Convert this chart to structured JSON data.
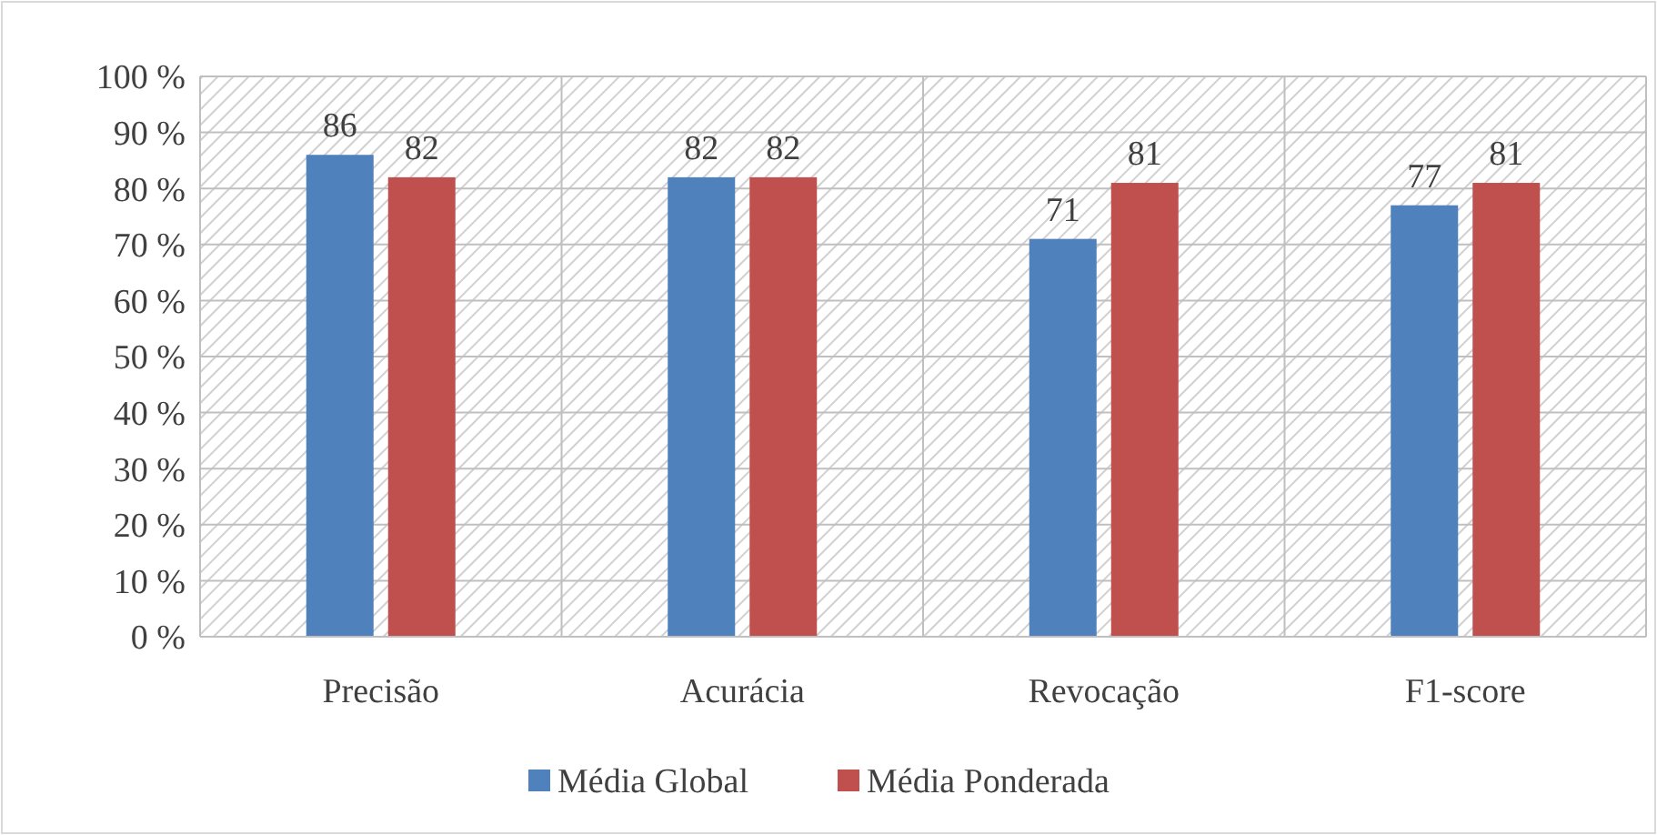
{
  "chart_data": {
    "type": "bar",
    "categories": [
      "Precisão",
      "Acurácia",
      "Revocação",
      "F1-score"
    ],
    "series": [
      {
        "name": "Média Global",
        "color": "#4f81bd",
        "values": [
          86,
          82,
          71,
          77
        ]
      },
      {
        "name": "Média Ponderada",
        "color": "#c0504d",
        "values": [
          82,
          82,
          81,
          81
        ]
      }
    ],
    "ylim": [
      0,
      100
    ],
    "yticks": [
      {
        "value": 0,
        "label": "0 %"
      },
      {
        "value": 10,
        "label": "10 %"
      },
      {
        "value": 20,
        "label": "20 %"
      },
      {
        "value": 30,
        "label": "30 %"
      },
      {
        "value": 40,
        "label": "40 %"
      },
      {
        "value": 50,
        "label": "50 %"
      },
      {
        "value": 60,
        "label": "60 %"
      },
      {
        "value": 70,
        "label": "70 %"
      },
      {
        "value": 80,
        "label": "80 %"
      },
      {
        "value": 90,
        "label": "90 %"
      },
      {
        "value": 100,
        "label": "100 %"
      }
    ],
    "grid": true,
    "legend": "bottom",
    "data_labels": true
  }
}
